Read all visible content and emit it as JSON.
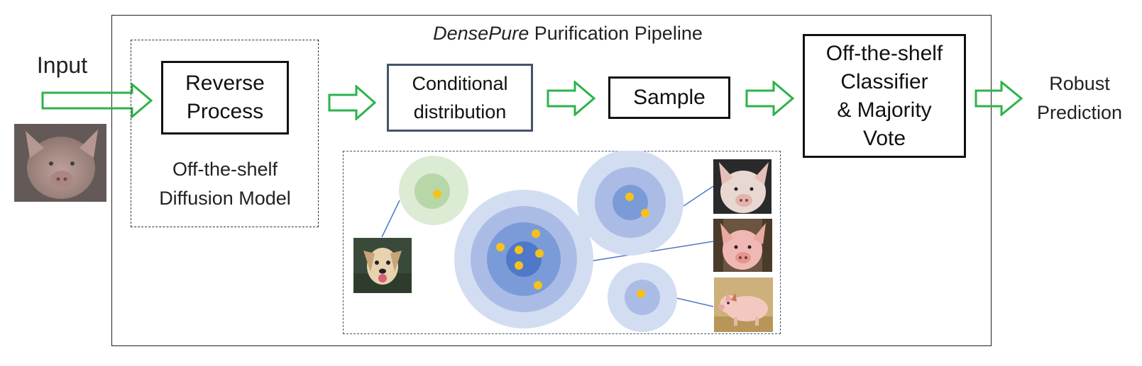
{
  "diagram": {
    "title_italic": "DensePure",
    "title_rest": " Purification Pipeline",
    "input_label": "Input",
    "reverse_process": [
      "Reverse",
      "Process"
    ],
    "diffusion_caption": [
      "Off-the-shelf",
      "Diffusion Model"
    ],
    "conditional_distribution": [
      "Conditional",
      "distribution"
    ],
    "sample": "Sample",
    "classifier_vote": [
      "Off-the-shelf",
      "Classifier",
      "& Majority",
      "Vote"
    ],
    "output_label": [
      "Robust",
      "Prediction"
    ]
  },
  "colors": {
    "arrow_green": "#2db34a",
    "dot_yellow": "#f5c21b",
    "blue_dark": "#4f78c9",
    "blue_mid": "#7b9bd8",
    "blue_light": "#aabce6",
    "blue_pale": "#d3ddf2",
    "green_pale": "#dcebd3",
    "green_mid": "#b7d7a8"
  },
  "images": {
    "input_image": "noisy-pig-photo-icon",
    "dog_image": "dog-photo-icon",
    "pig_samples": [
      "pig-photo-icon",
      "pig-photo-icon",
      "piglet-photo-icon"
    ]
  }
}
